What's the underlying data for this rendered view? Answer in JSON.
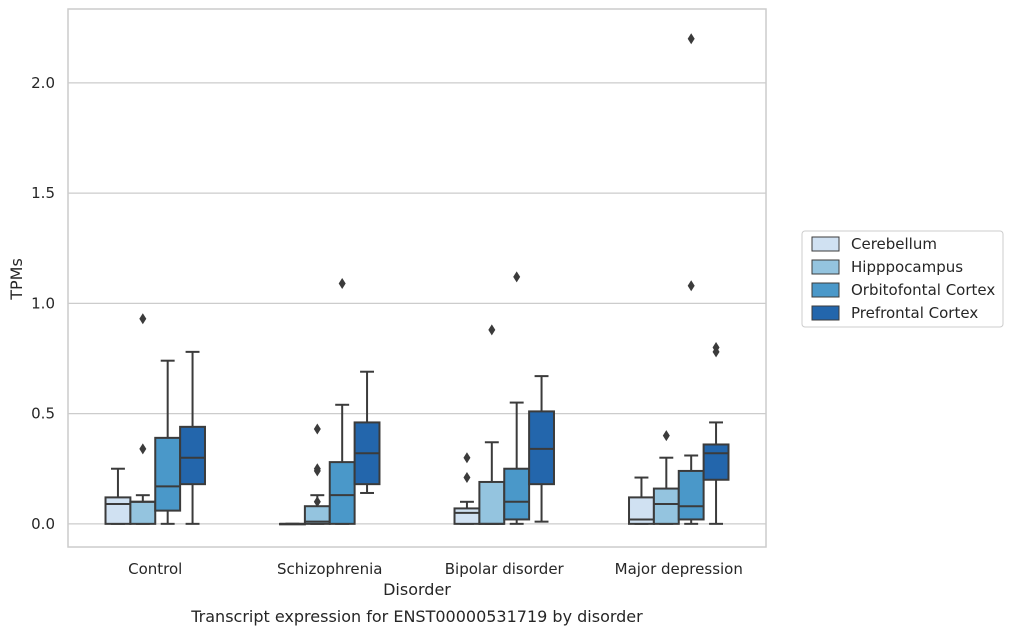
{
  "chart_data": {
    "type": "box",
    "xlabel": "Disorder",
    "ylabel": "TPMs",
    "caption": "Transcript expression for ENST00000531719 by disorder",
    "ylim": [
      -0.105,
      2.335
    ],
    "yticks": [
      0.0,
      0.5,
      1.0,
      1.5,
      2.0
    ],
    "ytick_labels": [
      "0.0",
      "0.5",
      "1.0",
      "1.5",
      "2.0"
    ],
    "grid": "horizontal",
    "legend_position": "right",
    "categories": [
      "Control",
      "Schizophrenia",
      "Bipolar disorder",
      "Major depression"
    ],
    "series": [
      {
        "name": "Cerebellum",
        "color": "#d0e1f2",
        "boxes": [
          {
            "whisker_low": 0.0,
            "q1": 0.0,
            "median": 0.09,
            "q3": 0.12,
            "whisker_high": 0.25,
            "outliers": []
          },
          {
            "whisker_low": 0.0,
            "q1": 0.0,
            "median": 0.0,
            "q3": 0.0,
            "whisker_high": 0.0,
            "outliers": []
          },
          {
            "whisker_low": 0.0,
            "q1": 0.0,
            "median": 0.05,
            "q3": 0.07,
            "whisker_high": 0.1,
            "outliers": [
              0.21,
              0.3
            ]
          },
          {
            "whisker_low": 0.0,
            "q1": 0.0,
            "median": 0.02,
            "q3": 0.12,
            "whisker_high": 0.21,
            "outliers": []
          }
        ]
      },
      {
        "name": "Hipppocampus",
        "color": "#94c4df",
        "boxes": [
          {
            "whisker_low": 0.0,
            "q1": 0.0,
            "median": 0.1,
            "q3": 0.1,
            "whisker_high": 0.13,
            "outliers": [
              0.34,
              0.93
            ]
          },
          {
            "whisker_low": 0.0,
            "q1": 0.0,
            "median": 0.01,
            "q3": 0.08,
            "whisker_high": 0.13,
            "outliers": [
              0.1,
              0.25,
              0.24,
              0.43
            ]
          },
          {
            "whisker_low": 0.0,
            "q1": 0.0,
            "median": 0.0,
            "q3": 0.19,
            "whisker_high": 0.37,
            "outliers": [
              0.88
            ]
          },
          {
            "whisker_low": 0.0,
            "q1": 0.0,
            "median": 0.09,
            "q3": 0.16,
            "whisker_high": 0.3,
            "outliers": [
              0.4
            ]
          }
        ]
      },
      {
        "name": "Orbitofontal Cortex",
        "color": "#4a98c9",
        "boxes": [
          {
            "whisker_low": 0.0,
            "q1": 0.06,
            "median": 0.17,
            "q3": 0.39,
            "whisker_high": 0.74,
            "outliers": []
          },
          {
            "whisker_low": 0.0,
            "q1": 0.0,
            "median": 0.13,
            "q3": 0.28,
            "whisker_high": 0.54,
            "outliers": [
              1.09
            ]
          },
          {
            "whisker_low": 0.0,
            "q1": 0.02,
            "median": 0.1,
            "q3": 0.25,
            "whisker_high": 0.55,
            "outliers": [
              1.12
            ]
          },
          {
            "whisker_low": 0.0,
            "q1": 0.02,
            "median": 0.08,
            "q3": 0.24,
            "whisker_high": 0.31,
            "outliers": [
              1.08,
              2.2
            ]
          }
        ]
      },
      {
        "name": "Prefrontal Cortex",
        "color": "#2366ac",
        "boxes": [
          {
            "whisker_low": 0.0,
            "q1": 0.18,
            "median": 0.3,
            "q3": 0.44,
            "whisker_high": 0.78,
            "outliers": []
          },
          {
            "whisker_low": 0.14,
            "q1": 0.18,
            "median": 0.32,
            "q3": 0.46,
            "whisker_high": 0.69,
            "outliers": []
          },
          {
            "whisker_low": 0.01,
            "q1": 0.18,
            "median": 0.34,
            "q3": 0.51,
            "whisker_high": 0.67,
            "outliers": []
          },
          {
            "whisker_low": 0.0,
            "q1": 0.2,
            "median": 0.32,
            "q3": 0.36,
            "whisker_high": 0.46,
            "outliers": [
              0.78,
              0.8
            ]
          }
        ]
      }
    ]
  }
}
